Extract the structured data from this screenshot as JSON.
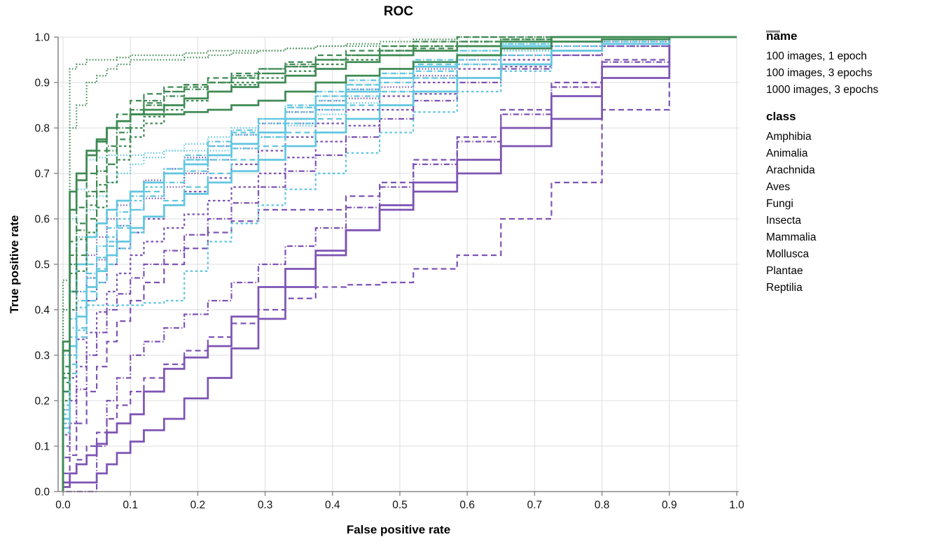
{
  "chart_data": {
    "type": "line",
    "subtype": "roc-step-curves",
    "title": "ROC",
    "xlabel": "False positive rate",
    "ylabel": "True positive rate",
    "xlim": [
      0,
      1
    ],
    "ylim": [
      0,
      1
    ],
    "ticks": [
      0,
      0.1,
      0.2,
      0.3,
      0.4,
      0.5,
      0.6,
      0.7,
      0.8,
      0.9,
      1.0
    ],
    "grid": true,
    "legend_position": "right",
    "colors": {
      "background": "#ffffff",
      "axis_domain": "#888888",
      "gridline": "#dddddd",
      "tick_label": "#111111",
      "class_symbol": "#848484"
    },
    "legend": {
      "name_title": "name",
      "names": [
        {
          "label": "100 images, 1 epoch",
          "color": "#7d53b4"
        },
        {
          "label": "100 images, 3 epochs",
          "color": "#62c6e0"
        },
        {
          "label": "1000 images, 3 epochs",
          "color": "#3f8a53"
        }
      ],
      "class_title": "class",
      "classes": [
        {
          "label": "Amphibia",
          "dash": "solid"
        },
        {
          "label": "Animalia",
          "dash": "dashed"
        },
        {
          "label": "Arachnida",
          "dash": "dash-short"
        },
        {
          "label": "Aves",
          "dash": "dotted"
        },
        {
          "label": "Fungi",
          "dash": "dash-dot"
        },
        {
          "label": "Insecta",
          "dash": "solid"
        },
        {
          "label": "Mammalia",
          "dash": "dashed"
        },
        {
          "label": "Mollusca",
          "dash": "dash-short"
        },
        {
          "label": "Plantae",
          "dash": "dotted"
        },
        {
          "label": "Reptilia",
          "dash": "dash-dot"
        }
      ]
    },
    "fpr_anchors": [
      0,
      0.02,
      0.05,
      0.08,
      0.12,
      0.18,
      0.25,
      0.33,
      0.42,
      0.52,
      0.65,
      0.8,
      1
    ],
    "series": [
      {
        "name": "100 images, 1 epoch",
        "class": "Amphibia",
        "tpr": [
          0,
          0.04,
          0.08,
          0.13,
          0.17,
          0.27,
          0.32,
          0.45,
          0.53,
          0.62,
          0.7,
          0.82,
          1
        ]
      },
      {
        "name": "100 images, 1 epoch",
        "class": "Animalia",
        "tpr": [
          0,
          0.08,
          0.22,
          0.33,
          0.42,
          0.5,
          0.57,
          0.62,
          0.62,
          0.68,
          0.78,
          0.9,
          1
        ]
      },
      {
        "name": "100 images, 1 epoch",
        "class": "Arachnida",
        "tpr": [
          0,
          0.2,
          0.35,
          0.44,
          0.52,
          0.58,
          0.64,
          0.7,
          0.77,
          0.84,
          0.91,
          0.96,
          1
        ]
      },
      {
        "name": "100 images, 1 epoch",
        "class": "Aves",
        "tpr": [
          0,
          0.3,
          0.47,
          0.55,
          0.62,
          0.67,
          0.73,
          0.78,
          0.84,
          0.89,
          0.94,
          0.98,
          1
        ]
      },
      {
        "name": "100 images, 1 epoch",
        "class": "Fungi",
        "tpr": [
          0,
          0.15,
          0.3,
          0.4,
          0.47,
          0.53,
          0.6,
          0.67,
          0.74,
          0.82,
          0.9,
          0.96,
          1
        ]
      },
      {
        "name": "100 images, 1 epoch",
        "class": "Insecta",
        "tpr": [
          0,
          0.02,
          0.02,
          0.06,
          0.11,
          0.16,
          0.25,
          0.38,
          0.52,
          0.63,
          0.73,
          0.87,
          1
        ]
      },
      {
        "name": "100 images, 1 epoch",
        "class": "Mammalia",
        "tpr": [
          0,
          0.04,
          0.1,
          0.16,
          0.22,
          0.28,
          0.34,
          0.4,
          0.45,
          0.46,
          0.52,
          0.68,
          1
        ]
      },
      {
        "name": "100 images, 1 epoch",
        "class": "Mollusca",
        "tpr": [
          0,
          0.25,
          0.42,
          0.5,
          0.57,
          0.63,
          0.69,
          0.75,
          0.81,
          0.87,
          0.93,
          0.97,
          1
        ]
      },
      {
        "name": "100 images, 1 epoch",
        "class": "Plantae",
        "tpr": [
          0,
          0.36,
          0.52,
          0.6,
          0.66,
          0.71,
          0.76,
          0.81,
          0.86,
          0.91,
          0.95,
          0.99,
          1
        ]
      },
      {
        "name": "100 images, 1 epoch",
        "class": "Reptilia",
        "tpr": [
          0,
          0,
          0,
          0.2,
          0.3,
          0.36,
          0.42,
          0.5,
          0.58,
          0.67,
          0.77,
          0.89,
          1
        ]
      },
      {
        "name": "100 images, 3 epochs",
        "class": "Amphibia",
        "tpr": [
          0,
          0.32,
          0.45,
          0.52,
          0.58,
          0.63,
          0.68,
          0.73,
          0.79,
          0.85,
          0.91,
          0.97,
          1
        ]
      },
      {
        "name": "100 images, 3 epochs",
        "class": "Animalia",
        "tpr": [
          0,
          0.26,
          0.42,
          0.5,
          0.57,
          0.64,
          0.7,
          0.76,
          0.82,
          0.88,
          0.94,
          0.98,
          1
        ]
      },
      {
        "name": "100 images, 3 epochs",
        "class": "Arachnida",
        "tpr": [
          0,
          0.3,
          0.41,
          0.41,
          0.41,
          0.42,
          0.55,
          0.63,
          0.7,
          0.79,
          0.88,
          0.97,
          1
        ]
      },
      {
        "name": "100 images, 3 epochs",
        "class": "Aves",
        "tpr": [
          0,
          0.6,
          0.73,
          0.74,
          0.74,
          0.75,
          0.75,
          0.78,
          0.83,
          0.88,
          0.94,
          1,
          1
        ]
      },
      {
        "name": "100 images, 3 epochs",
        "class": "Fungi",
        "tpr": [
          0,
          0.36,
          0.48,
          0.55,
          0.62,
          0.68,
          0.73,
          0.78,
          0.84,
          0.9,
          0.95,
          1,
          1
        ]
      },
      {
        "name": "100 images, 3 epochs",
        "class": "Insecta",
        "tpr": [
          0,
          0.44,
          0.56,
          0.62,
          0.66,
          0.7,
          0.74,
          0.79,
          0.85,
          0.91,
          0.96,
          1,
          1
        ]
      },
      {
        "name": "100 images, 3 epochs",
        "class": "Mammalia",
        "tpr": [
          0,
          0.28,
          0.44,
          0.54,
          0.62,
          0.7,
          0.76,
          0.82,
          0.87,
          0.92,
          0.96,
          1,
          1
        ]
      },
      {
        "name": "100 images, 3 epochs",
        "class": "Mollusca",
        "tpr": [
          0,
          0.34,
          0.47,
          0.56,
          0.64,
          0.7,
          0.76,
          0.81,
          0.86,
          0.91,
          0.96,
          1,
          1
        ]
      },
      {
        "name": "100 images, 3 epochs",
        "class": "Plantae",
        "tpr": [
          0,
          0.5,
          0.62,
          0.68,
          0.72,
          0.75,
          0.78,
          0.82,
          0.87,
          0.92,
          0.97,
          1,
          1
        ]
      },
      {
        "name": "100 images, 3 epochs",
        "class": "Reptilia",
        "tpr": [
          0,
          0.38,
          0.5,
          0.58,
          0.65,
          0.71,
          0.77,
          0.82,
          0.88,
          0.93,
          0.97,
          1,
          1
        ]
      },
      {
        "name": "1000 images, 3 epochs",
        "class": "Amphibia",
        "tpr": [
          0,
          0.62,
          0.75,
          0.8,
          0.83,
          0.83,
          0.84,
          0.86,
          0.9,
          0.93,
          0.96,
          0.99,
          1
        ]
      },
      {
        "name": "1000 images, 3 epochs",
        "class": "Animalia",
        "tpr": [
          0,
          0.55,
          0.7,
          0.8,
          0.86,
          0.89,
          0.9,
          0.92,
          0.95,
          0.97,
          0.98,
          1,
          1
        ]
      },
      {
        "name": "1000 images, 3 epochs",
        "class": "Arachnida",
        "tpr": [
          0,
          0.48,
          0.63,
          0.72,
          0.8,
          0.85,
          0.88,
          0.91,
          0.94,
          0.96,
          0.98,
          1,
          1
        ]
      },
      {
        "name": "1000 images, 3 epochs",
        "class": "Aves",
        "tpr": [
          0,
          0.8,
          0.9,
          0.93,
          0.95,
          0.95,
          0.96,
          0.97,
          0.98,
          0.99,
          1,
          1,
          1
        ]
      },
      {
        "name": "1000 images, 3 epochs",
        "class": "Fungi",
        "tpr": [
          0,
          0.52,
          0.66,
          0.75,
          0.83,
          0.87,
          0.9,
          0.93,
          0.95,
          0.97,
          0.99,
          1,
          1
        ]
      },
      {
        "name": "1000 images, 3 epochs",
        "class": "Insecta",
        "tpr": [
          0,
          0.66,
          0.74,
          0.8,
          0.83,
          0.85,
          0.88,
          0.9,
          0.93,
          0.96,
          0.98,
          1,
          1
        ]
      },
      {
        "name": "1000 images, 3 epochs",
        "class": "Mammalia",
        "tpr": [
          0,
          0.44,
          0.6,
          0.72,
          0.83,
          0.88,
          0.91,
          0.93,
          0.96,
          0.98,
          1,
          1,
          1
        ]
      },
      {
        "name": "1000 images, 3 epochs",
        "class": "Mollusca",
        "tpr": [
          0,
          0.4,
          0.57,
          0.68,
          0.78,
          0.84,
          0.88,
          0.92,
          0.95,
          0.97,
          0.99,
          1,
          1
        ]
      },
      {
        "name": "1000 images, 3 epochs",
        "class": "Plantae",
        "tpr": [
          0,
          0.93,
          0.95,
          0.95,
          0.96,
          0.96,
          0.97,
          0.97,
          0.98,
          0.98,
          1,
          1,
          1
        ]
      },
      {
        "name": "1000 images, 3 epochs",
        "class": "Reptilia",
        "tpr": [
          0,
          0.5,
          0.65,
          0.76,
          0.84,
          0.88,
          0.9,
          0.92,
          0.95,
          0.97,
          0.99,
          1,
          1
        ]
      }
    ]
  }
}
